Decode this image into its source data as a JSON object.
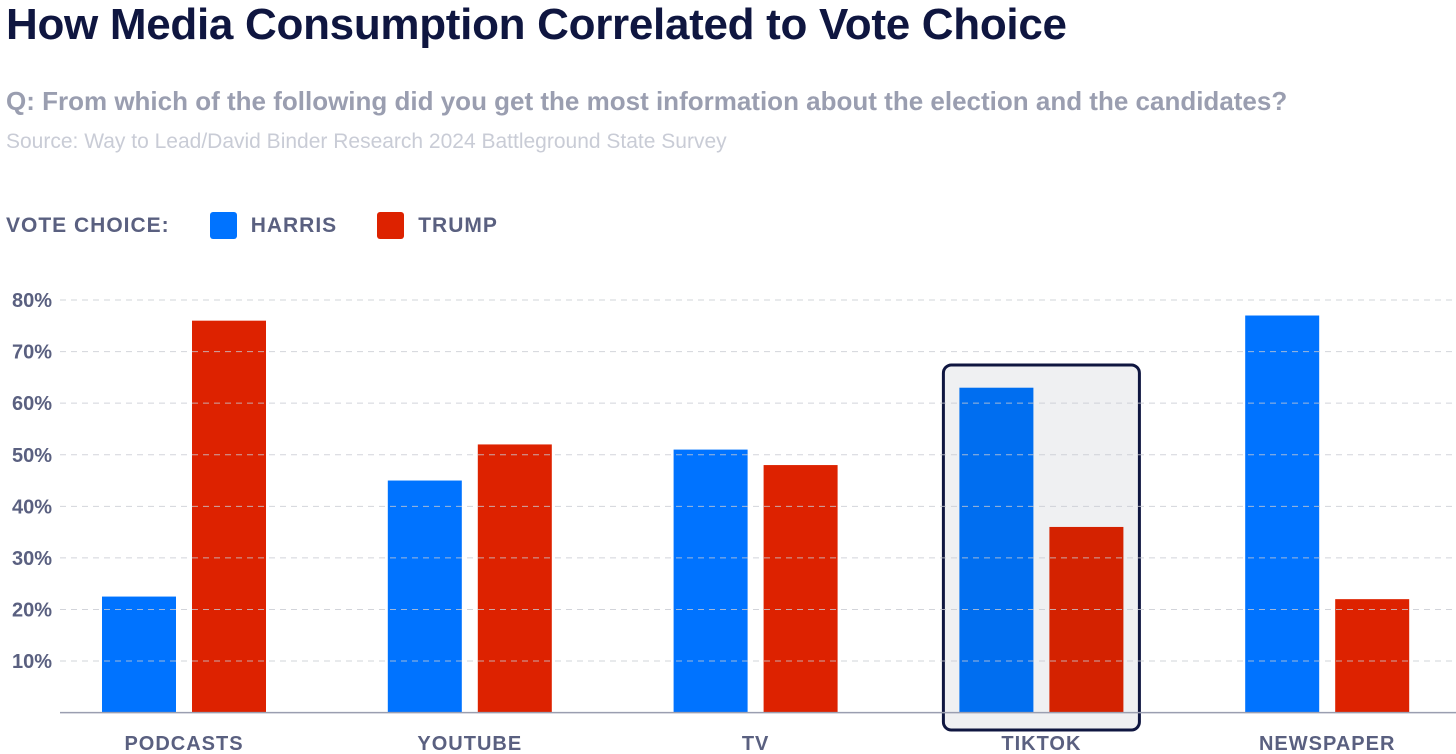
{
  "title": "How Media Consumption Correlated to Vote Choice",
  "question": "Q: From which of the following did you get the most information about the election and the candidates?",
  "source": "Source: Way to Lead/David Binder Research 2024 Battleground State Survey",
  "legend": {
    "label": "VOTE CHOICE:",
    "harris": "HARRIS",
    "trump": "TRUMP"
  },
  "colors": {
    "harris": "#0073ff",
    "trump": "#dd2200",
    "highlight_fill": "#eff0f2",
    "highlight_stroke": "#0f1640"
  },
  "chart_data": {
    "type": "bar",
    "title": "How Media Consumption Correlated to Vote Choice",
    "categories": [
      "PODCASTS",
      "YOUTUBE",
      "TV",
      "TIKTOK",
      "NEWSPAPER"
    ],
    "series": [
      {
        "name": "HARRIS",
        "values": [
          22.5,
          45,
          51,
          63,
          77
        ]
      },
      {
        "name": "TRUMP",
        "values": [
          76,
          52,
          48,
          36,
          22
        ]
      }
    ],
    "yticks": [
      "10%",
      "20%",
      "30%",
      "40%",
      "50%",
      "60%",
      "70%",
      "80%"
    ],
    "ylim": [
      0,
      80
    ],
    "grid": true,
    "highlighted_category": "TIKTOK",
    "legend_position": "top-left"
  }
}
